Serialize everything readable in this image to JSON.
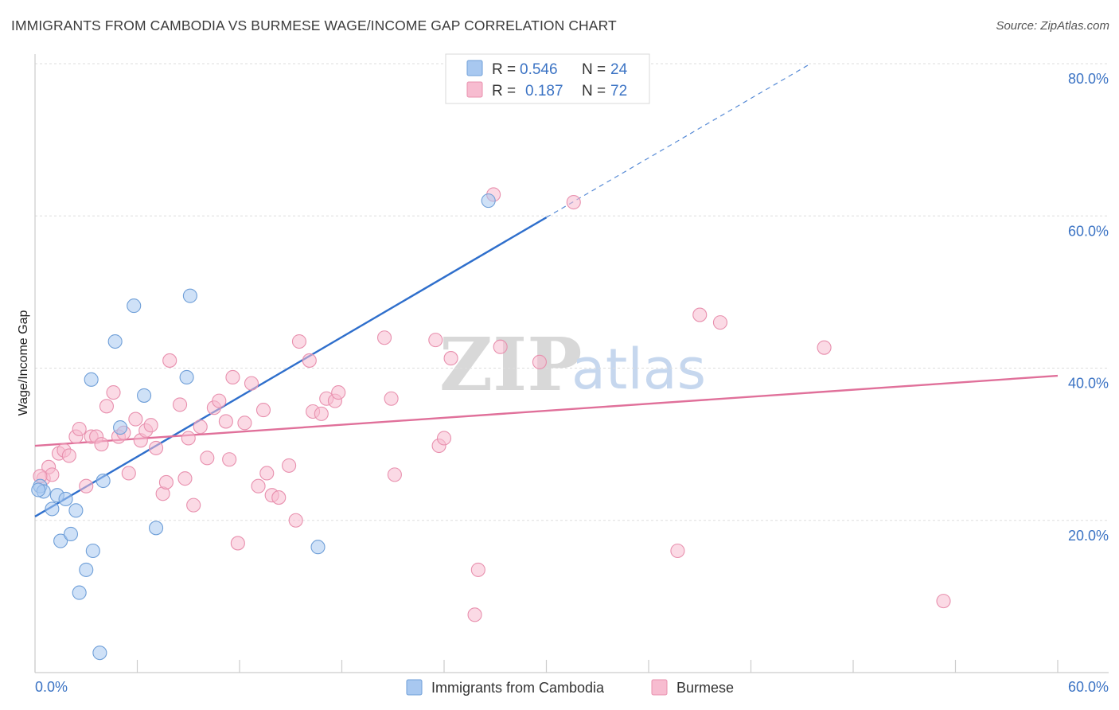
{
  "chart_data": {
    "type": "scatter",
    "title": "IMMIGRANTS FROM CAMBODIA VS BURMESE WAGE/INCOME GAP CORRELATION CHART",
    "source": "Source: ZipAtlas.com",
    "ylabel": "Wage/Income Gap",
    "xlim": [
      0,
      60
    ],
    "ylim": [
      0,
      80
    ],
    "x_tick_labels": [
      "0.0%",
      "60.0%"
    ],
    "y_ticks": [
      20,
      40,
      60,
      80
    ],
    "y_tick_labels": [
      "20.0%",
      "40.0%",
      "60.0%",
      "80.0%"
    ],
    "legend": [
      {
        "name": "Immigrants from Cambodia",
        "r_label": "R = ",
        "r_value": "0.546",
        "n_label": "N = ",
        "n_value": "24",
        "color": "#a8c8f0",
        "stroke": "#6f9fd8"
      },
      {
        "name": "Burmese",
        "r_label": "R = ",
        "r_value": "0.187",
        "n_label": "N = ",
        "n_value": "72",
        "color": "#f7bcd0",
        "stroke": "#e890ae"
      }
    ],
    "series": [
      {
        "name": "Immigrants from Cambodia",
        "fill": "#a8c8f0",
        "stroke": "#6f9fd8",
        "line_color": "#2f6fcc",
        "trend": {
          "x0": 0,
          "y0": 20.5,
          "x1": 30,
          "y1": 59.8,
          "dash_to_x": 45.5,
          "dash_to_y": 80
        },
        "points": [
          [
            0.3,
            24.5
          ],
          [
            0.5,
            23.8
          ],
          [
            1.0,
            21.5
          ],
          [
            1.3,
            23.3
          ],
          [
            1.5,
            17.3
          ],
          [
            1.8,
            22.8
          ],
          [
            2.1,
            18.2
          ],
          [
            2.4,
            21.3
          ],
          [
            2.6,
            10.5
          ],
          [
            3.0,
            13.5
          ],
          [
            3.4,
            16.0
          ],
          [
            3.3,
            38.5
          ],
          [
            3.8,
            2.6
          ],
          [
            4.0,
            25.2
          ],
          [
            4.7,
            43.5
          ],
          [
            5.0,
            32.2
          ],
          [
            5.8,
            48.2
          ],
          [
            6.4,
            36.4
          ],
          [
            7.1,
            19.0
          ],
          [
            8.9,
            38.8
          ],
          [
            9.1,
            49.5
          ],
          [
            16.6,
            16.5
          ],
          [
            26.6,
            62.0
          ],
          [
            0.2,
            24.0
          ]
        ]
      },
      {
        "name": "Burmese",
        "fill": "#f7bcd0",
        "stroke": "#e890ae",
        "line_color": "#e0709a",
        "trend": {
          "x0": 0,
          "y0": 29.8,
          "x1": 60,
          "y1": 39.0
        },
        "points": [
          [
            0.5,
            25.5
          ],
          [
            0.8,
            27.0
          ],
          [
            1.0,
            26.0
          ],
          [
            1.4,
            28.8
          ],
          [
            1.7,
            29.2
          ],
          [
            2.0,
            28.5
          ],
          [
            2.4,
            31.0
          ],
          [
            2.6,
            32.0
          ],
          [
            3.0,
            24.5
          ],
          [
            3.3,
            31.0
          ],
          [
            3.6,
            31.0
          ],
          [
            3.9,
            30.0
          ],
          [
            4.2,
            35.0
          ],
          [
            4.6,
            36.8
          ],
          [
            4.9,
            31.0
          ],
          [
            5.2,
            31.5
          ],
          [
            5.5,
            26.2
          ],
          [
            5.9,
            33.3
          ],
          [
            6.2,
            30.5
          ],
          [
            6.5,
            31.8
          ],
          [
            6.8,
            32.5
          ],
          [
            7.1,
            29.5
          ],
          [
            7.5,
            23.5
          ],
          [
            7.7,
            25.0
          ],
          [
            7.9,
            41.0
          ],
          [
            8.5,
            35.2
          ],
          [
            8.8,
            25.5
          ],
          [
            9.0,
            30.8
          ],
          [
            9.3,
            22.0
          ],
          [
            9.7,
            32.3
          ],
          [
            10.1,
            28.2
          ],
          [
            10.5,
            34.8
          ],
          [
            10.8,
            35.7
          ],
          [
            11.2,
            33.0
          ],
          [
            11.4,
            28.0
          ],
          [
            11.6,
            38.8
          ],
          [
            11.9,
            17.0
          ],
          [
            12.3,
            32.8
          ],
          [
            12.7,
            38.0
          ],
          [
            13.1,
            24.5
          ],
          [
            13.4,
            34.5
          ],
          [
            13.6,
            26.2
          ],
          [
            13.9,
            23.3
          ],
          [
            14.3,
            23.0
          ],
          [
            14.9,
            27.2
          ],
          [
            15.3,
            20.0
          ],
          [
            15.5,
            43.5
          ],
          [
            16.1,
            41.0
          ],
          [
            16.3,
            34.3
          ],
          [
            16.8,
            34.0
          ],
          [
            17.1,
            36.0
          ],
          [
            17.6,
            35.7
          ],
          [
            17.8,
            36.8
          ],
          [
            20.5,
            44.0
          ],
          [
            20.9,
            36.0
          ],
          [
            21.1,
            26.0
          ],
          [
            23.5,
            43.7
          ],
          [
            23.7,
            29.8
          ],
          [
            24.0,
            30.8
          ],
          [
            24.4,
            41.3
          ],
          [
            25.8,
            7.6
          ],
          [
            26.0,
            13.5
          ],
          [
            26.9,
            62.8
          ],
          [
            27.3,
            42.8
          ],
          [
            29.6,
            40.8
          ],
          [
            31.6,
            61.8
          ],
          [
            37.7,
            16.0
          ],
          [
            39.0,
            47.0
          ],
          [
            40.2,
            46.0
          ],
          [
            46.3,
            42.7
          ],
          [
            53.3,
            9.4
          ],
          [
            0.3,
            25.8
          ]
        ]
      }
    ]
  }
}
